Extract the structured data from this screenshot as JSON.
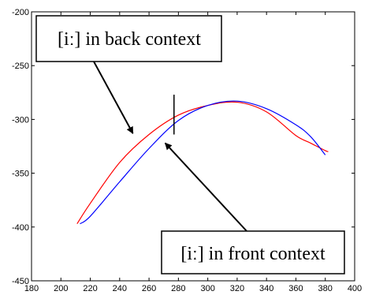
{
  "chart_data": {
    "type": "line",
    "title": "",
    "xlabel": "",
    "ylabel": "",
    "xlim": [
      180,
      400
    ],
    "ylim": [
      -450,
      -200
    ],
    "xticks": [
      180,
      200,
      220,
      240,
      260,
      280,
      300,
      320,
      340,
      360,
      380,
      400
    ],
    "yticks": [
      -200,
      -250,
      -300,
      -350,
      -400,
      -450
    ],
    "grid": false,
    "series": [
      {
        "color": "#ff0000",
        "points": [
          [
            211,
            -397
          ],
          [
            220,
            -378
          ],
          [
            240,
            -340
          ],
          [
            260,
            -314
          ],
          [
            280,
            -296
          ],
          [
            300,
            -287
          ],
          [
            320,
            -284
          ],
          [
            340,
            -293
          ],
          [
            360,
            -315
          ],
          [
            370,
            -322
          ],
          [
            380,
            -329
          ],
          [
            382,
            -330
          ]
        ]
      },
      {
        "color": "#0000ff",
        "points": [
          [
            213,
            -397
          ],
          [
            220,
            -390
          ],
          [
            240,
            -358
          ],
          [
            260,
            -327
          ],
          [
            280,
            -301
          ],
          [
            300,
            -287
          ],
          [
            320,
            -283
          ],
          [
            340,
            -290
          ],
          [
            360,
            -305
          ],
          [
            370,
            -316
          ],
          [
            380,
            -333
          ]
        ]
      }
    ],
    "annotations": [
      {
        "text": "[iː] in back context",
        "arrow_to": [
          249,
          -313
        ]
      },
      {
        "text": "[iː] in front context",
        "arrow_to": [
          271,
          -322
        ]
      }
    ],
    "marker_line": {
      "x": 277,
      "y_range": [
        -277,
        -314
      ]
    }
  }
}
